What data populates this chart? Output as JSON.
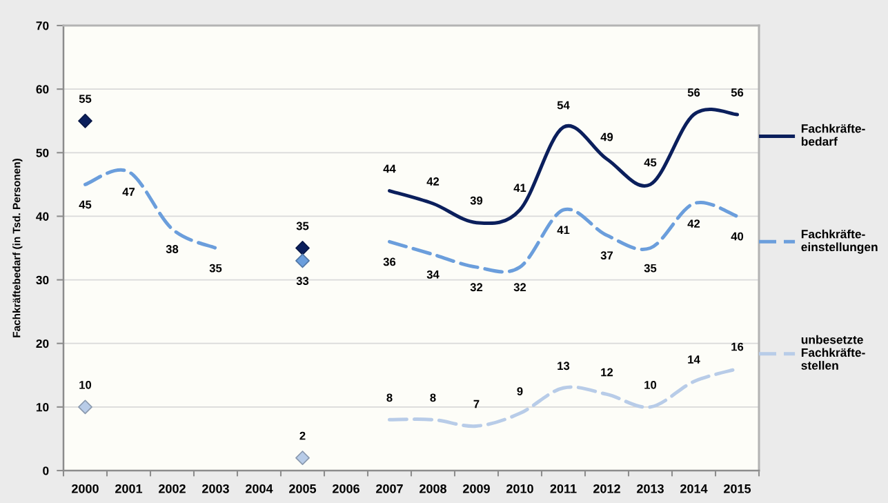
{
  "chart_data": {
    "type": "line",
    "ylabel": "Fachkräftebedarf (in Tsd. Personen)",
    "categories": [
      "2000",
      "2001",
      "2002",
      "2003",
      "2004",
      "2005",
      "2006",
      "2007",
      "2008",
      "2009",
      "2010",
      "2011",
      "2012",
      "2013",
      "2014",
      "2015"
    ],
    "series": [
      {
        "name": "Fachkräfte-\nbedarf",
        "color": "#0b1f5c",
        "line_style": "solid",
        "values": [
          null,
          null,
          null,
          null,
          null,
          null,
          null,
          44,
          42,
          39,
          41,
          54,
          49,
          45,
          56,
          56
        ]
      },
      {
        "name": "Fachkräfte-\neinstellungen",
        "color": "#6b9edc",
        "line_style": "dashed",
        "values": [
          45,
          47,
          38,
          35,
          null,
          null,
          null,
          36,
          34,
          32,
          32,
          41,
          37,
          35,
          42,
          40
        ]
      },
      {
        "name": "unbesetzte\nFachkräfte-\nstellen",
        "color": "#b8cce8",
        "line_style": "dashed",
        "values": [
          null,
          null,
          null,
          null,
          null,
          null,
          null,
          8,
          8,
          7,
          9,
          13,
          12,
          10,
          14,
          16
        ]
      },
      {
        "type": "scatter",
        "color": "#0b1f5c",
        "marker": "diamond",
        "values": [
          55,
          null,
          null,
          null,
          null,
          35,
          null,
          null,
          null,
          null,
          null,
          null,
          null,
          null,
          null,
          null
        ]
      },
      {
        "type": "scatter",
        "color": "#6b9edc",
        "marker": "diamond",
        "values": [
          null,
          null,
          null,
          null,
          null,
          33,
          null,
          null,
          null,
          null,
          null,
          null,
          null,
          null,
          null,
          null
        ]
      },
      {
        "type": "scatter",
        "color": "#b8cce8",
        "marker": "diamond",
        "values": [
          10,
          null,
          null,
          null,
          null,
          2,
          null,
          null,
          null,
          null,
          null,
          null,
          null,
          null,
          null,
          null
        ]
      }
    ],
    "ylim": [
      0,
      70
    ],
    "yticks": [
      0,
      10,
      20,
      30,
      40,
      50,
      60,
      70
    ],
    "grid": "y",
    "legend": "right",
    "data_labels": true
  }
}
